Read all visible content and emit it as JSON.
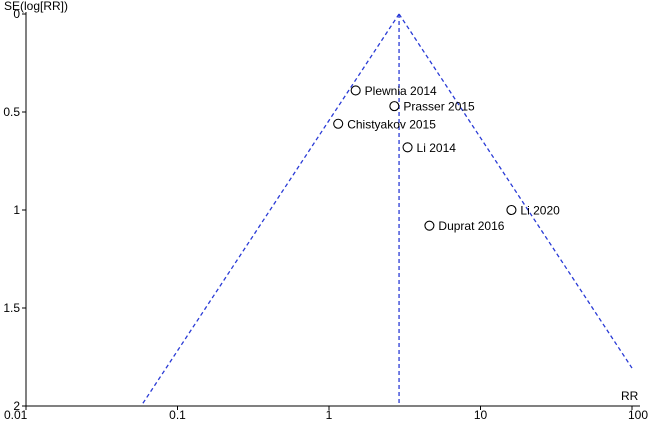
{
  "chart_data": {
    "type": "scatter",
    "subtype": "funnel-plot",
    "title": "",
    "xlabel": "RR",
    "ylabel": "SE(log[RR])",
    "x_scale": "log",
    "xlim": [
      0.01,
      100
    ],
    "ylim": [
      0,
      2
    ],
    "y_inverted": true,
    "x_ticks": [
      0.01,
      0.1,
      1,
      10,
      100
    ],
    "x_tick_labels": [
      "0.01",
      "0.1",
      "1",
      "10",
      "100"
    ],
    "y_ticks": [
      0,
      0.5,
      1,
      1.5,
      2
    ],
    "y_tick_labels": [
      "0",
      "0.5",
      "1",
      "1.5",
      "2"
    ],
    "pooled_estimate": 2.9,
    "pseudo_ci_z": 1.96,
    "guide_color": "#2a3bd6",
    "grid": false,
    "points": [
      {
        "label": "Plewnia 2014",
        "x": 1.5,
        "y": 0.39
      },
      {
        "label": "Prasser 2015",
        "x": 2.7,
        "y": 0.47
      },
      {
        "label": "Chistyakov 2015",
        "x": 1.15,
        "y": 0.56
      },
      {
        "label": "Li 2014",
        "x": 3.3,
        "y": 0.68
      },
      {
        "label": "Li 2020",
        "x": 16.0,
        "y": 1.0
      },
      {
        "label": "Duprat 2016",
        "x": 4.6,
        "y": 1.08
      }
    ]
  }
}
